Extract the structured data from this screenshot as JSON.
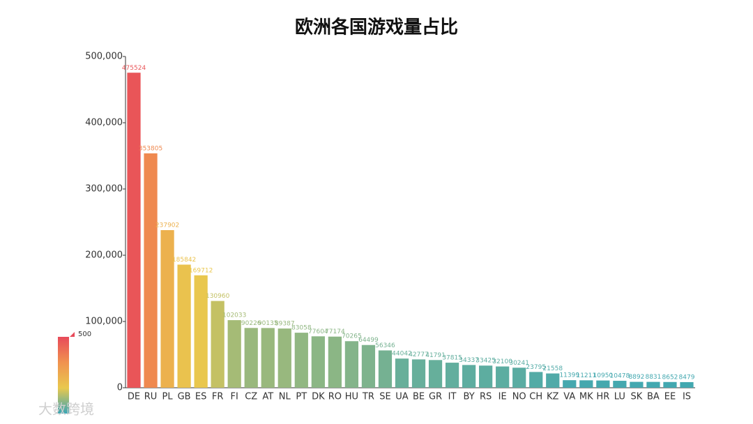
{
  "chart_data": {
    "type": "bar",
    "title": "欧洲各国游戏量占比",
    "categories": [
      "DE",
      "RU",
      "PL",
      "GB",
      "ES",
      "FR",
      "FI",
      "CZ",
      "AT",
      "NL",
      "PT",
      "DK",
      "RO",
      "HU",
      "TR",
      "SE",
      "UA",
      "BE",
      "GR",
      "IT",
      "BY",
      "RS",
      "IE",
      "NO",
      "CH",
      "KZ",
      "VA",
      "MK",
      "HR",
      "LU",
      "SK",
      "BA",
      "EE",
      "IS"
    ],
    "values": [
      475524,
      353805,
      237902,
      185842,
      169712,
      130960,
      102033,
      90226,
      90135,
      89387,
      83058,
      77604,
      77174,
      70265,
      64499,
      56346,
      44042,
      42777,
      41791,
      37815,
      34337,
      33425,
      32100,
      30241,
      23795,
      21558,
      11399,
      11211,
      10950,
      10478,
      8892,
      8831,
      8652,
      8479
    ],
    "ylim": [
      0,
      500000
    ],
    "yticks": [
      0,
      {
        "value": 100000,
        "label": "100,000"
      },
      {
        "value": 200000,
        "label": "200,000"
      },
      {
        "value": 300000,
        "label": "300,000"
      },
      {
        "value": 400000,
        "label": "400,000"
      },
      {
        "value": 500000,
        "label": "500,000"
      }
    ],
    "visual_map": {
      "label": "500",
      "colors": [
        "#3aa6b5",
        "#e9c84e",
        "#f0924f",
        "#e84a5a"
      ]
    },
    "watermark": "大数跨境"
  }
}
